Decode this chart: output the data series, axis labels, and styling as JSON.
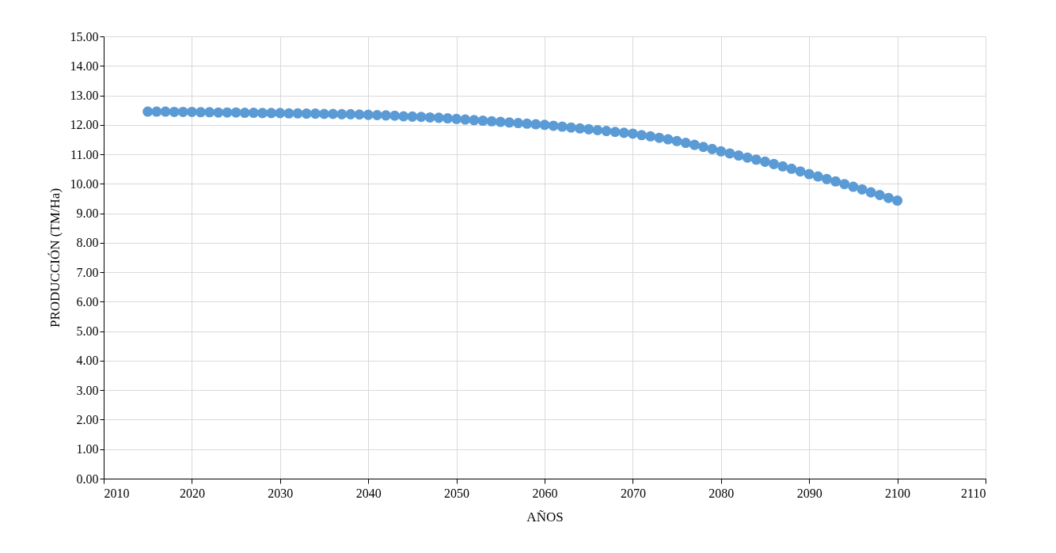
{
  "chart_data": {
    "type": "scatter",
    "xlabel": "AÑOS",
    "ylabel": "PRODUCCIÓN (TM/Ha)",
    "x": [
      2015,
      2016,
      2017,
      2018,
      2019,
      2020,
      2021,
      2022,
      2023,
      2024,
      2025,
      2026,
      2027,
      2028,
      2029,
      2030,
      2031,
      2032,
      2033,
      2034,
      2035,
      2036,
      2037,
      2038,
      2039,
      2040,
      2041,
      2042,
      2043,
      2044,
      2045,
      2046,
      2047,
      2048,
      2049,
      2050,
      2051,
      2052,
      2053,
      2054,
      2055,
      2056,
      2057,
      2058,
      2059,
      2060,
      2061,
      2062,
      2063,
      2064,
      2065,
      2066,
      2067,
      2068,
      2069,
      2070,
      2071,
      2072,
      2073,
      2074,
      2075,
      2076,
      2077,
      2078,
      2079,
      2080,
      2081,
      2082,
      2083,
      2084,
      2085,
      2086,
      2087,
      2088,
      2089,
      2090,
      2091,
      2092,
      2093,
      2094,
      2095,
      2096,
      2097,
      2098,
      2099,
      2100
    ],
    "series": [
      {
        "color": "#5b9bd5",
        "values": [
          12.45,
          12.45,
          12.45,
          12.44,
          12.44,
          12.44,
          12.43,
          12.43,
          12.42,
          12.42,
          12.42,
          12.41,
          12.41,
          12.4,
          12.4,
          12.4,
          12.39,
          12.39,
          12.38,
          12.38,
          12.37,
          12.37,
          12.36,
          12.36,
          12.35,
          12.34,
          12.33,
          12.32,
          12.31,
          12.29,
          12.28,
          12.27,
          12.25,
          12.24,
          12.22,
          12.2,
          12.18,
          12.16,
          12.14,
          12.12,
          12.1,
          12.08,
          12.06,
          12.04,
          12.02,
          12.0,
          11.97,
          11.94,
          11.91,
          11.88,
          11.85,
          11.82,
          11.79,
          11.76,
          11.73,
          11.7,
          11.65,
          11.61,
          11.56,
          11.51,
          11.45,
          11.39,
          11.32,
          11.25,
          11.18,
          11.1,
          11.03,
          10.96,
          10.89,
          10.82,
          10.75,
          10.67,
          10.59,
          10.51,
          10.42,
          10.33,
          10.25,
          10.16,
          10.08,
          9.99,
          9.9,
          9.81,
          9.71,
          9.62,
          9.52,
          9.43
        ]
      }
    ],
    "xlim": [
      2010,
      2110
    ],
    "xticks": [
      2010,
      2020,
      2030,
      2040,
      2050,
      2060,
      2070,
      2080,
      2090,
      2100,
      2110
    ],
    "ylim": [
      0,
      15
    ],
    "yticks": [
      {
        "value": 0,
        "label": "0.00"
      },
      {
        "value": 1,
        "label": "1.00"
      },
      {
        "value": 2,
        "label": "2.00"
      },
      {
        "value": 3,
        "label": "3.00"
      },
      {
        "value": 4,
        "label": "4.00"
      },
      {
        "value": 5,
        "label": "5.00"
      },
      {
        "value": 6,
        "label": "6.00"
      },
      {
        "value": 7,
        "label": "7.00"
      },
      {
        "value": 8,
        "label": "8.00"
      },
      {
        "value": 9,
        "label": "9.00"
      },
      {
        "value": 10,
        "label": "10.00"
      },
      {
        "value": 11,
        "label": "11.00"
      },
      {
        "value": 12,
        "label": "12.00"
      },
      {
        "value": 13,
        "label": "13.00"
      },
      {
        "value": 14,
        "label": "14.00"
      },
      {
        "value": 15,
        "label": "15.00"
      }
    ],
    "grid": true,
    "marker": "circle"
  }
}
